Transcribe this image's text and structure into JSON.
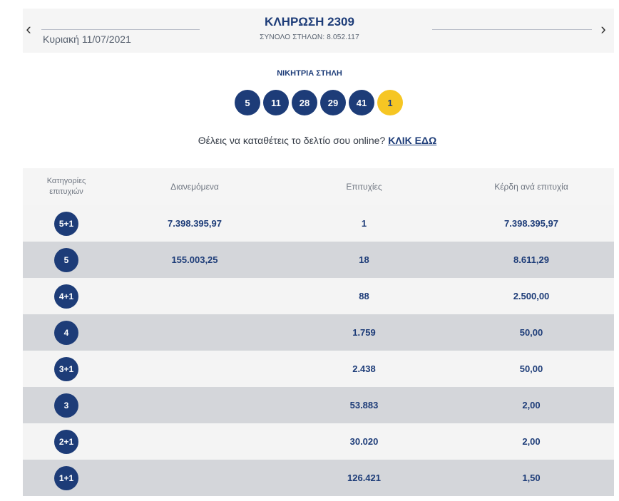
{
  "draw": {
    "date": "Κυριακή 11/07/2021",
    "title": "ΚΛΗΡΩΣΗ 2309",
    "subtitle": "ΣΥΝΟΛΟ ΣΤΗΛΩΝ: 8.052.117",
    "prev_arrow": "‹",
    "next_arrow": "›"
  },
  "winning": {
    "label": "ΝΙΚΗΤΡΙΑ ΣΤΗΛΗ",
    "numbers": [
      "5",
      "11",
      "28",
      "29",
      "41"
    ],
    "joker": "1"
  },
  "cta": {
    "text": "Θέλεις να καταθέτεις το δελτίο σου online?",
    "link": "ΚΛΙΚ ΕΔΩ"
  },
  "table": {
    "headers": {
      "category_line1": "Κατηγορίες",
      "category_line2": "επιτυχιών",
      "distributed": "Διανεμόμενα",
      "winners": "Επιτυχίες",
      "prize": "Κέρδη ανά επιτυχία"
    },
    "rows": [
      {
        "category": "5+1",
        "distributed": "7.398.395,97",
        "winners": "1",
        "prize": "7.398.395,97"
      },
      {
        "category": "5",
        "distributed": "155.003,25",
        "winners": "18",
        "prize": "8.611,29"
      },
      {
        "category": "4+1",
        "distributed": "",
        "winners": "88",
        "prize": "2.500,00"
      },
      {
        "category": "4",
        "distributed": "",
        "winners": "1.759",
        "prize": "50,00"
      },
      {
        "category": "3+1",
        "distributed": "",
        "winners": "2.438",
        "prize": "50,00"
      },
      {
        "category": "3",
        "distributed": "",
        "winners": "53.883",
        "prize": "2,00"
      },
      {
        "category": "2+1",
        "distributed": "",
        "winners": "30.020",
        "prize": "2,00"
      },
      {
        "category": "1+1",
        "distributed": "",
        "winners": "126.421",
        "prize": "1,50"
      }
    ]
  },
  "colors": {
    "primary": "#1d3c78",
    "joker": "#f6c623",
    "row_light": "#f4f4f4",
    "row_dark": "#d4d6da"
  }
}
